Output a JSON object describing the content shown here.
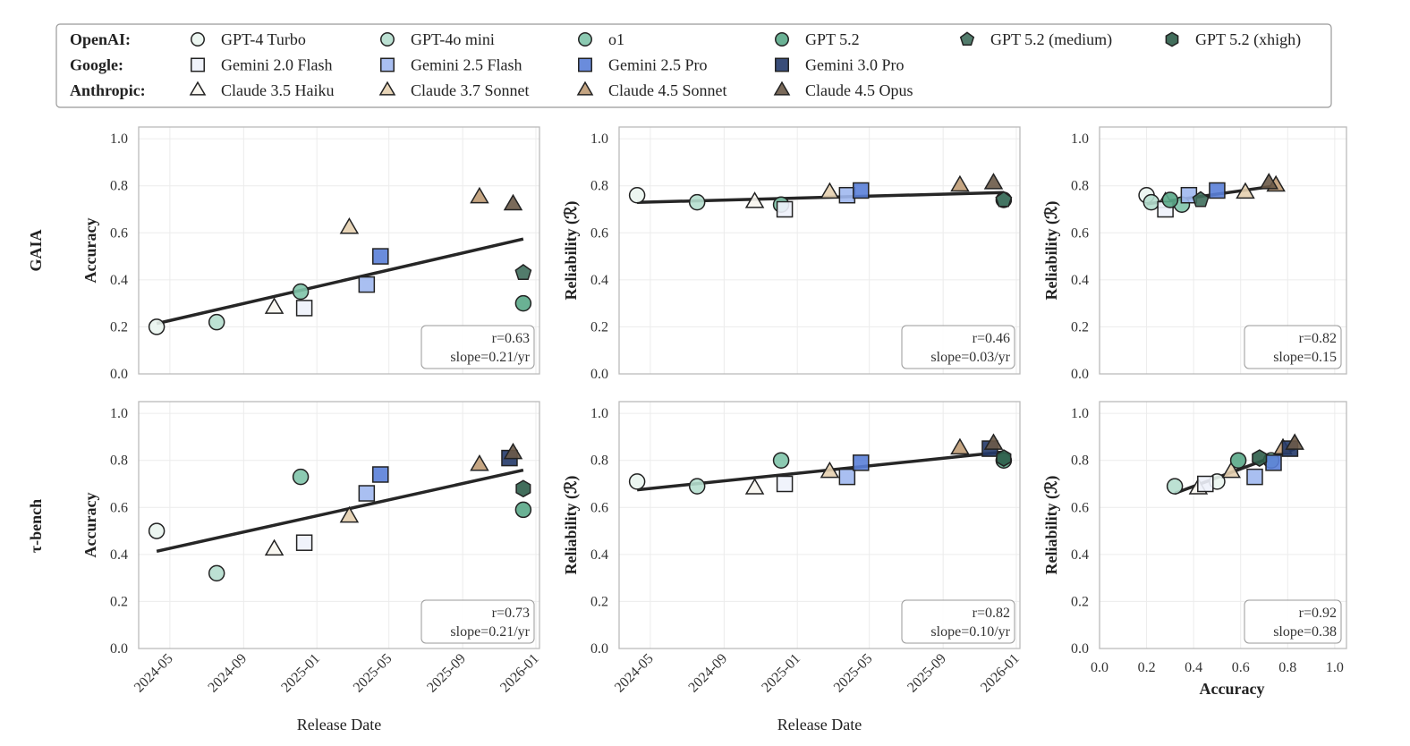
{
  "legend": {
    "groups": [
      {
        "label": "OpenAI:",
        "models": [
          "GPT-4 Turbo",
          "GPT-4o mini",
          "o1",
          "GPT 5.2",
          "GPT 5.2 (medium)",
          "GPT 5.2 (xhigh)"
        ]
      },
      {
        "label": "Google:",
        "models": [
          "Gemini 2.0 Flash",
          "Gemini 2.5 Flash",
          "Gemini 2.5 Pro",
          "Gemini 3.0 Pro"
        ]
      },
      {
        "label": "Anthropic:",
        "models": [
          "Claude 3.5 Haiku",
          "Claude 3.7 Sonnet",
          "Claude 4.5 Sonnet",
          "Claude 4.5 Opus"
        ]
      }
    ]
  },
  "models": {
    "GPT-4 Turbo": {
      "shape": "circle",
      "color": "#eaf5f0"
    },
    "GPT-4o mini": {
      "shape": "circle",
      "color": "#b5dece"
    },
    "o1": {
      "shape": "circle",
      "color": "#80c4aa"
    },
    "GPT 5.2": {
      "shape": "circle",
      "color": "#5aa888"
    },
    "GPT 5.2 (medium)": {
      "shape": "pentagon",
      "color": "#3f6e5c"
    },
    "GPT 5.2 (xhigh)": {
      "shape": "hexagon",
      "color": "#2e5e4a"
    },
    "Gemini 2.0 Flash": {
      "shape": "square",
      "color": "#eef2fb"
    },
    "Gemini 2.5 Flash": {
      "shape": "square",
      "color": "#a0b8f0"
    },
    "Gemini 2.5 Pro": {
      "shape": "square",
      "color": "#5a80d8"
    },
    "Gemini 3.0 Pro": {
      "shape": "square",
      "color": "#243a6a"
    },
    "Claude 3.5 Haiku": {
      "shape": "triangle",
      "color": "#f8f6f0"
    },
    "Claude 3.7 Sonnet": {
      "shape": "triangle",
      "color": "#e6d0b0"
    },
    "Claude 4.5 Sonnet": {
      "shape": "triangle",
      "color": "#bf9b74"
    },
    "Claude 4.5 Opus": {
      "shape": "triangle",
      "color": "#6b5a48"
    }
  },
  "row_labels": [
    "GAIA",
    "τ-bench"
  ],
  "chart_data": [
    {
      "type": "scatter",
      "benchmark": "GAIA",
      "xaxis": "date",
      "xlabel": "",
      "ylabel": "Accuracy",
      "xlim": [
        "2024-03-10",
        "2026-01-07"
      ],
      "ylim": [
        0,
        1.05
      ],
      "grid": true,
      "x_ticks": [],
      "y_ticks": [
        "0.0",
        "0.2",
        "0.4",
        "0.6",
        "0.8",
        "1.0"
      ],
      "annotation": [
        "r=0.63",
        "slope=0.21/yr"
      ],
      "points": [
        [
          "GPT-4 Turbo",
          "2024-04-09",
          0.2
        ],
        [
          "GPT-4o mini",
          "2024-07-18",
          0.22
        ],
        [
          "Claude 3.5 Haiku",
          "2024-10-22",
          0.28
        ],
        [
          "o1",
          "2024-12-05",
          0.35
        ],
        [
          "Gemini 2.0 Flash",
          "2024-12-11",
          0.28
        ],
        [
          "Claude 3.7 Sonnet",
          "2025-02-24",
          0.62
        ],
        [
          "Gemini 2.5 Flash",
          "2025-03-25",
          0.38
        ],
        [
          "Gemini 2.5 Pro",
          "2025-04-17",
          0.5
        ],
        [
          "Claude 4.5 Sonnet",
          "2025-09-29",
          0.75
        ],
        [
          "Claude 4.5 Opus",
          "2025-11-24",
          0.72
        ],
        [
          "GPT 5.2",
          "2025-12-11",
          0.3
        ],
        [
          "GPT 5.2 (medium)",
          "2025-12-11",
          0.43
        ]
      ]
    },
    {
      "type": "scatter",
      "benchmark": "GAIA",
      "xaxis": "date",
      "xlabel": "",
      "ylabel": "Reliability (ℛ)",
      "xlim": [
        "2024-03-10",
        "2026-01-07"
      ],
      "ylim": [
        0,
        1.05
      ],
      "grid": true,
      "x_ticks": [],
      "y_ticks": [
        "0.0",
        "0.2",
        "0.4",
        "0.6",
        "0.8",
        "1.0"
      ],
      "annotation": [
        "r=0.46",
        "slope=0.03/yr"
      ],
      "points": [
        [
          "GPT-4 Turbo",
          "2024-04-09",
          0.76
        ],
        [
          "GPT-4o mini",
          "2024-07-18",
          0.73
        ],
        [
          "Claude 3.5 Haiku",
          "2024-10-22",
          0.73
        ],
        [
          "o1",
          "2024-12-05",
          0.72
        ],
        [
          "Gemini 2.0 Flash",
          "2024-12-11",
          0.7
        ],
        [
          "Claude 3.7 Sonnet",
          "2025-02-24",
          0.77
        ],
        [
          "Gemini 2.5 Flash",
          "2025-03-25",
          0.76
        ],
        [
          "Gemini 2.5 Pro",
          "2025-04-17",
          0.78
        ],
        [
          "Claude 4.5 Sonnet",
          "2025-09-29",
          0.8
        ],
        [
          "Claude 4.5 Opus",
          "2025-11-24",
          0.81
        ],
        [
          "GPT 5.2",
          "2025-12-11",
          0.74
        ],
        [
          "GPT 5.2 (medium)",
          "2025-12-11",
          0.74
        ]
      ]
    },
    {
      "type": "scatter",
      "benchmark": "GAIA",
      "xaxis": "number",
      "xlabel": "",
      "ylabel": "Reliability (ℛ)",
      "xlim": [
        0,
        1.05
      ],
      "ylim": [
        0,
        1.05
      ],
      "grid": true,
      "x_ticks": [],
      "y_ticks": [
        "0.0",
        "0.2",
        "0.4",
        "0.6",
        "0.8",
        "1.0"
      ],
      "annotation": [
        "r=0.82",
        "slope=0.15"
      ],
      "points": [
        [
          "GPT-4 Turbo",
          0.2,
          0.76
        ],
        [
          "GPT-4o mini",
          0.22,
          0.73
        ],
        [
          "Claude 3.5 Haiku",
          0.28,
          0.73
        ],
        [
          "o1",
          0.35,
          0.72
        ],
        [
          "Gemini 2.0 Flash",
          0.28,
          0.7
        ],
        [
          "Claude 3.7 Sonnet",
          0.62,
          0.77
        ],
        [
          "Gemini 2.5 Flash",
          0.38,
          0.76
        ],
        [
          "Gemini 2.5 Pro",
          0.5,
          0.78
        ],
        [
          "Claude 4.5 Sonnet",
          0.75,
          0.8
        ],
        [
          "Claude 4.5 Opus",
          0.72,
          0.81
        ],
        [
          "GPT 5.2",
          0.3,
          0.74
        ],
        [
          "GPT 5.2 (medium)",
          0.43,
          0.74
        ]
      ]
    },
    {
      "type": "scatter",
      "benchmark": "τ-bench",
      "xaxis": "date",
      "xlabel": "Release Date",
      "ylabel": "Accuracy",
      "xlim": [
        "2024-03-10",
        "2026-01-07"
      ],
      "ylim": [
        0,
        1.05
      ],
      "grid": true,
      "x_ticks": [
        "2024-05",
        "2024-09",
        "2025-01",
        "2025-05",
        "2025-09",
        "2026-01"
      ],
      "y_ticks": [
        "0.0",
        "0.2",
        "0.4",
        "0.6",
        "0.8",
        "1.0"
      ],
      "annotation": [
        "r=0.73",
        "slope=0.21/yr"
      ],
      "points": [
        [
          "GPT-4 Turbo",
          "2024-04-09",
          0.5
        ],
        [
          "GPT-4o mini",
          "2024-07-18",
          0.32
        ],
        [
          "Claude 3.5 Haiku",
          "2024-10-22",
          0.42
        ],
        [
          "o1",
          "2024-12-05",
          0.73
        ],
        [
          "Gemini 2.0 Flash",
          "2024-12-11",
          0.45
        ],
        [
          "Claude 3.7 Sonnet",
          "2025-02-24",
          0.56
        ],
        [
          "Gemini 2.5 Flash",
          "2025-03-25",
          0.66
        ],
        [
          "Gemini 2.5 Pro",
          "2025-04-17",
          0.74
        ],
        [
          "Claude 4.5 Sonnet",
          "2025-09-29",
          0.78
        ],
        [
          "Gemini 3.0 Pro",
          "2025-11-18",
          0.81
        ],
        [
          "Claude 4.5 Opus",
          "2025-11-24",
          0.83
        ],
        [
          "GPT 5.2",
          "2025-12-11",
          0.59
        ],
        [
          "GPT 5.2 (xhigh)",
          "2025-12-11",
          0.68
        ]
      ]
    },
    {
      "type": "scatter",
      "benchmark": "τ-bench",
      "xaxis": "date",
      "xlabel": "Release Date",
      "ylabel": "Reliability (ℛ)",
      "xlim": [
        "2024-03-10",
        "2026-01-07"
      ],
      "ylim": [
        0,
        1.05
      ],
      "grid": true,
      "x_ticks": [
        "2024-05",
        "2024-09",
        "2025-01",
        "2025-05",
        "2025-09",
        "2026-01"
      ],
      "y_ticks": [
        "0.0",
        "0.2",
        "0.4",
        "0.6",
        "0.8",
        "1.0"
      ],
      "annotation": [
        "r=0.82",
        "slope=0.10/yr"
      ],
      "points": [
        [
          "GPT-4 Turbo",
          "2024-04-09",
          0.71
        ],
        [
          "GPT-4o mini",
          "2024-07-18",
          0.69
        ],
        [
          "Claude 3.5 Haiku",
          "2024-10-22",
          0.68
        ],
        [
          "o1",
          "2024-12-05",
          0.8
        ],
        [
          "Gemini 2.0 Flash",
          "2024-12-11",
          0.7
        ],
        [
          "Claude 3.7 Sonnet",
          "2025-02-24",
          0.75
        ],
        [
          "Gemini 2.5 Flash",
          "2025-03-25",
          0.73
        ],
        [
          "Gemini 2.5 Pro",
          "2025-04-17",
          0.79
        ],
        [
          "Claude 4.5 Sonnet",
          "2025-09-29",
          0.85
        ],
        [
          "Gemini 3.0 Pro",
          "2025-11-18",
          0.85
        ],
        [
          "Claude 4.5 Opus",
          "2025-11-24",
          0.87
        ],
        [
          "GPT 5.2",
          "2025-12-11",
          0.8
        ],
        [
          "GPT 5.2 (xhigh)",
          "2025-12-11",
          0.81
        ]
      ]
    },
    {
      "type": "scatter",
      "benchmark": "τ-bench",
      "xaxis": "number",
      "xlabel": "Accuracy",
      "ylabel": "Reliability (ℛ)",
      "xlim": [
        0,
        1.05
      ],
      "ylim": [
        0,
        1.05
      ],
      "grid": true,
      "x_ticks": [
        "0.0",
        "0.2",
        "0.4",
        "0.6",
        "0.8",
        "1.0"
      ],
      "y_ticks": [
        "0.0",
        "0.2",
        "0.4",
        "0.6",
        "0.8",
        "1.0"
      ],
      "annotation": [
        "r=0.92",
        "slope=0.38"
      ],
      "points": [
        [
          "GPT-4 Turbo",
          0.5,
          0.71
        ],
        [
          "GPT-4o mini",
          0.32,
          0.69
        ],
        [
          "Claude 3.5 Haiku",
          0.42,
          0.68
        ],
        [
          "o1",
          0.73,
          0.8
        ],
        [
          "Gemini 2.0 Flash",
          0.45,
          0.7
        ],
        [
          "Claude 3.7 Sonnet",
          0.56,
          0.75
        ],
        [
          "Gemini 2.5 Flash",
          0.66,
          0.73
        ],
        [
          "Gemini 2.5 Pro",
          0.74,
          0.79
        ],
        [
          "Claude 4.5 Sonnet",
          0.78,
          0.85
        ],
        [
          "Gemini 3.0 Pro",
          0.81,
          0.85
        ],
        [
          "Claude 4.5 Opus",
          0.83,
          0.87
        ],
        [
          "GPT 5.2",
          0.59,
          0.8
        ],
        [
          "GPT 5.2 (xhigh)",
          0.68,
          0.81
        ]
      ]
    }
  ]
}
